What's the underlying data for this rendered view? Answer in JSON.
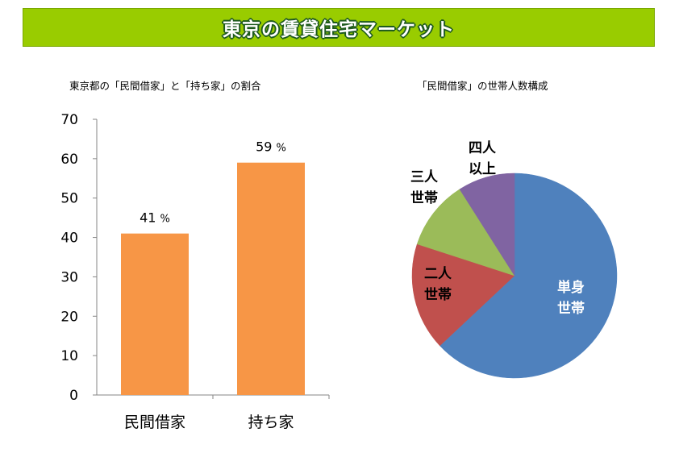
{
  "banner": {
    "title": "東京の賃貸住宅マーケット"
  },
  "colors": {
    "banner_bg": "#99cc00",
    "bar": "#f79646",
    "pie_single": "#4f81bd",
    "pie_two": "#c0504d",
    "pie_three": "#9bbb59",
    "pie_four_plus": "#8064a2"
  },
  "chart_data": [
    {
      "type": "bar",
      "title": "東京都の「民間借家」と「持ち家」の割合",
      "categories": [
        "民間借家",
        "持ち家"
      ],
      "values": [
        41,
        59
      ],
      "data_labels": [
        "41 %",
        "59 %"
      ],
      "ylim": [
        0,
        70
      ],
      "yticks": [
        "0",
        "10",
        "20",
        "30",
        "40",
        "50",
        "60",
        "70"
      ],
      "grid": false
    },
    {
      "type": "pie",
      "title": "「民間借家」の世帯人数構成",
      "slices": [
        {
          "label": [
            "単身",
            "世帯"
          ],
          "value": 63,
          "color": "#4f81bd"
        },
        {
          "label": [
            "二人",
            "世帯"
          ],
          "value": 17,
          "color": "#c0504d"
        },
        {
          "label": [
            "三人",
            "世帯"
          ],
          "value": 11,
          "color": "#9bbb59"
        },
        {
          "label": [
            "四人",
            "以上"
          ],
          "value": 9,
          "color": "#8064a2"
        }
      ]
    }
  ]
}
